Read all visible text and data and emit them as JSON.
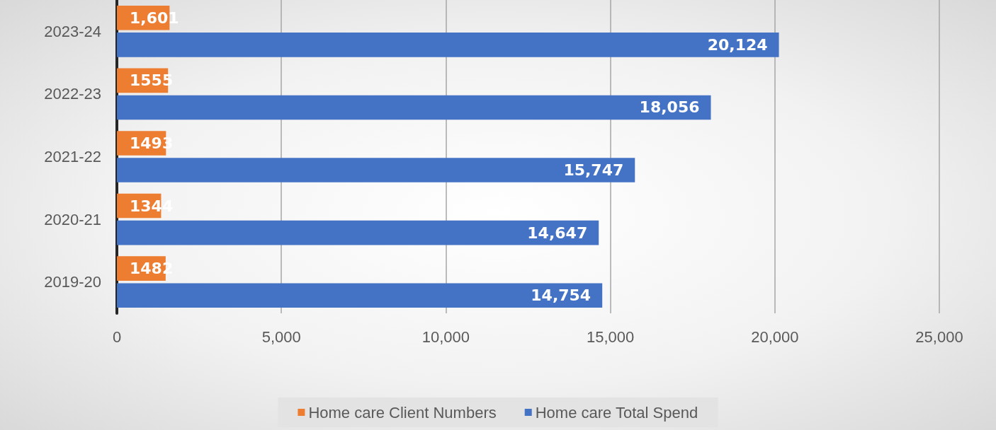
{
  "chart_data": {
    "type": "bar",
    "orientation": "horizontal",
    "categories": [
      "2023-24",
      "2022-23",
      "2021-22",
      "2020-21",
      "2019-20"
    ],
    "series": [
      {
        "name": "Home care Client Numbers",
        "color": "#ed7d31",
        "values": [
          1601,
          1555,
          1493,
          1344,
          1482
        ],
        "value_labels": [
          "1,601",
          "1555",
          "1493",
          "1344",
          "1482"
        ]
      },
      {
        "name": "Home care Total Spend",
        "color": "#4472c4",
        "values": [
          20124,
          18056,
          15747,
          14647,
          14754
        ],
        "value_labels": [
          "20,124",
          "18,056",
          "15,747",
          "14,647",
          "14,754"
        ]
      }
    ],
    "xlim": [
      0,
      25000
    ],
    "xticks": [
      0,
      {
        "value": 5000,
        "label": "5,000"
      },
      {
        "value": 10000,
        "label": "10,000"
      },
      {
        "value": 15000,
        "label": "15,000"
      },
      {
        "value": 20000,
        "label": "20,000"
      },
      {
        "value": 25000,
        "label": "25,000"
      }
    ],
    "grid": "x",
    "legend": "bottom"
  }
}
